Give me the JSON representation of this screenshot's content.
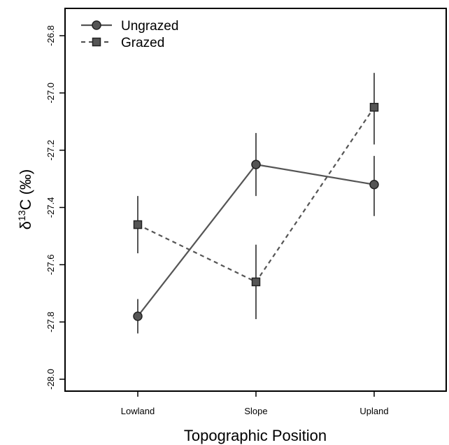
{
  "chart_data": {
    "type": "line",
    "categories": [
      "Lowland",
      "Slope",
      "Upland"
    ],
    "xlabel": "Topographic Position",
    "ylabel": {
      "prefix": "δ",
      "superscript": "13",
      "suffix": "C (‰)"
    },
    "ylim": [
      -28.05,
      -26.75
    ],
    "yticks": [
      -28.0,
      -27.8,
      -27.6,
      -27.4,
      -27.2,
      -27.0,
      -26.8
    ],
    "ytick_labels": [
      "-28.0",
      "-27.8",
      "-27.6",
      "-27.4",
      "-27.2",
      "-27.0",
      "-26.8"
    ],
    "grid": false,
    "legend_position": "top-left",
    "series": [
      {
        "name": "Ungrazed",
        "marker": "circle",
        "line_style": "solid",
        "color": "#555555",
        "values": [
          -27.78,
          -27.25,
          -27.32
        ],
        "error_low": [
          -27.84,
          -27.36,
          -27.43
        ],
        "error_high": [
          -27.72,
          -27.14,
          -27.22
        ]
      },
      {
        "name": "Grazed",
        "marker": "square",
        "line_style": "dashed",
        "color": "#555555",
        "values": [
          -27.46,
          -27.66,
          -27.05
        ],
        "error_low": [
          -27.56,
          -27.79,
          -27.18
        ],
        "error_high": [
          -27.36,
          -27.53,
          -26.93
        ]
      }
    ]
  }
}
